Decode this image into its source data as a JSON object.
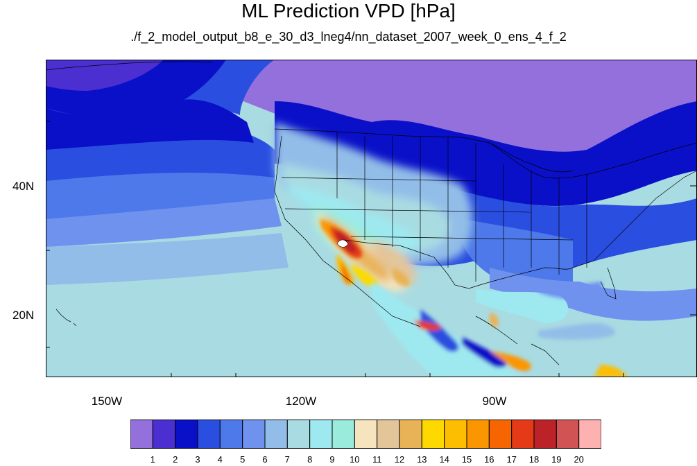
{
  "title": "ML Prediction VPD [hPa]",
  "subtitle": "./f_2_model_output_b8_e_30_d3_lneg4/nn_dataset_2007_week_0_ens_4_f_2",
  "map": {
    "lat_labels": [
      "40N",
      "20N"
    ],
    "lon_labels": [
      "150W",
      "120W",
      "90W"
    ]
  },
  "colorbar": {
    "labels": [
      "1",
      "2",
      "3",
      "4",
      "5",
      "6",
      "7",
      "8",
      "9",
      "10",
      "11",
      "12",
      "13",
      "14",
      "15",
      "16",
      "17",
      "18",
      "19",
      "20"
    ],
    "colors": [
      "#9370db",
      "#4b2fd0",
      "#0a10c8",
      "#2a4ee0",
      "#4d79ea",
      "#6f92ee",
      "#92bde8",
      "#a9dbe2",
      "#9ee9f0",
      "#9aebdc",
      "#f5e4be",
      "#e3c59a",
      "#e8b356",
      "#fed900",
      "#fdbd00",
      "#fb9600",
      "#f66500",
      "#e53a18",
      "#bc2328",
      "#d15353",
      "#feb1b1"
    ]
  }
}
